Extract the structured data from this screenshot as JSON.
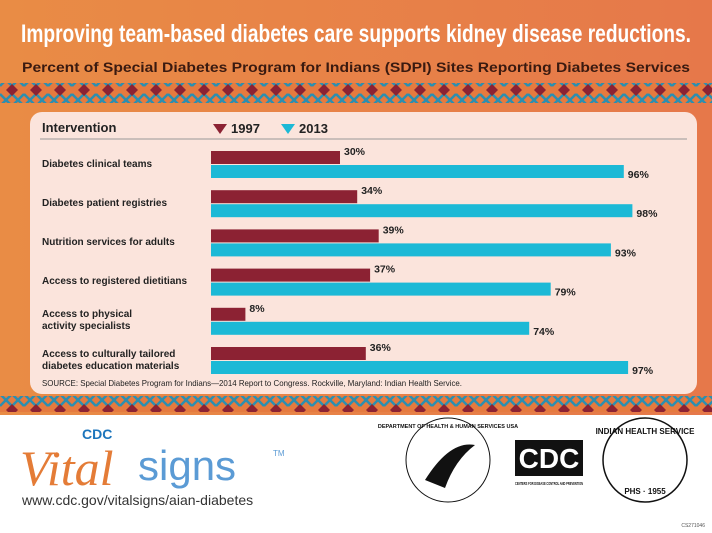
{
  "chart_data": {
    "type": "bar",
    "orientation": "horizontal",
    "title": "Improving team-based diabetes care supports kidney disease reductions.",
    "subtitle": "Percent of Special Diabetes Program for Indians (SDPI) Sites Reporting Diabetes Services",
    "category_header": "Intervention",
    "categories": [
      "Diabetes clinical teams",
      "Diabetes patient registries",
      "Nutrition services for adults",
      "Access to registered dietitians",
      "Access to physical\nactivity specialists",
      "Access to culturally tailored\ndiabetes education materials"
    ],
    "series": [
      {
        "name": "1997",
        "color": "#8c2233",
        "values": [
          30,
          34,
          39,
          37,
          8,
          36
        ],
        "value_labels": [
          "30%",
          "34%",
          "39%",
          "37%",
          "8%",
          "36%"
        ]
      },
      {
        "name": "2013",
        "color": "#1cb9d6",
        "values": [
          96,
          98,
          93,
          79,
          74,
          97
        ],
        "value_labels": [
          "96%",
          "98%",
          "93%",
          "79%",
          "74%",
          "97%"
        ]
      }
    ],
    "xlim": [
      0,
      100
    ],
    "source": "SOURCE: Special Diabetes Program for Indians—2014 Report to Congress. Rockville, Maryland: Indian Health Service."
  },
  "footer": {
    "logo_cdc": "CDC",
    "logo_vital": "Vital",
    "logo_signs": "signs",
    "logo_tm": "TM",
    "url": "www.cdc.gov/vitalsigns/aian-diabetes",
    "hhs": "DEPARTMENT OF HEALTH & HUMAN SERVICES USA",
    "cdc": "CDC",
    "cdc_sub": "CENTERS FOR DISEASE CONTROL AND PREVENTION",
    "ihs": "INDIAN HEALTH SERVICE",
    "ihs_sub": "PHS · 1955",
    "code": "CS271046"
  }
}
